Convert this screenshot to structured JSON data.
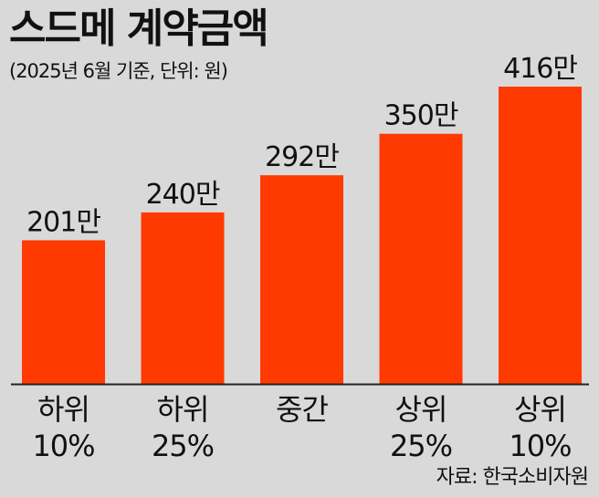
{
  "title": "스드메 계약금액",
  "subtitle": "(2025년 6월 기준, 단위: 원)",
  "source": "자료: 한국소비자원",
  "colors": {
    "bar": "#ff3a00",
    "background": "#d9d9d9",
    "axis": "#222222"
  },
  "chart_data": {
    "type": "bar",
    "categories": [
      [
        "하위",
        "10%"
      ],
      [
        "하위",
        "25%"
      ],
      [
        "중간",
        ""
      ],
      [
        "상위",
        "25%"
      ],
      [
        "상위",
        "10%"
      ]
    ],
    "values": [
      2010000,
      2400000,
      2920000,
      3500000,
      4160000
    ],
    "data_labels": [
      "201만",
      "240만",
      "292만",
      "350만",
      "416만"
    ],
    "title": "스드메 계약금액",
    "xlabel": "",
    "ylabel": "",
    "ylim": [
      0,
      4160000
    ],
    "grid": false,
    "legend": "none"
  }
}
